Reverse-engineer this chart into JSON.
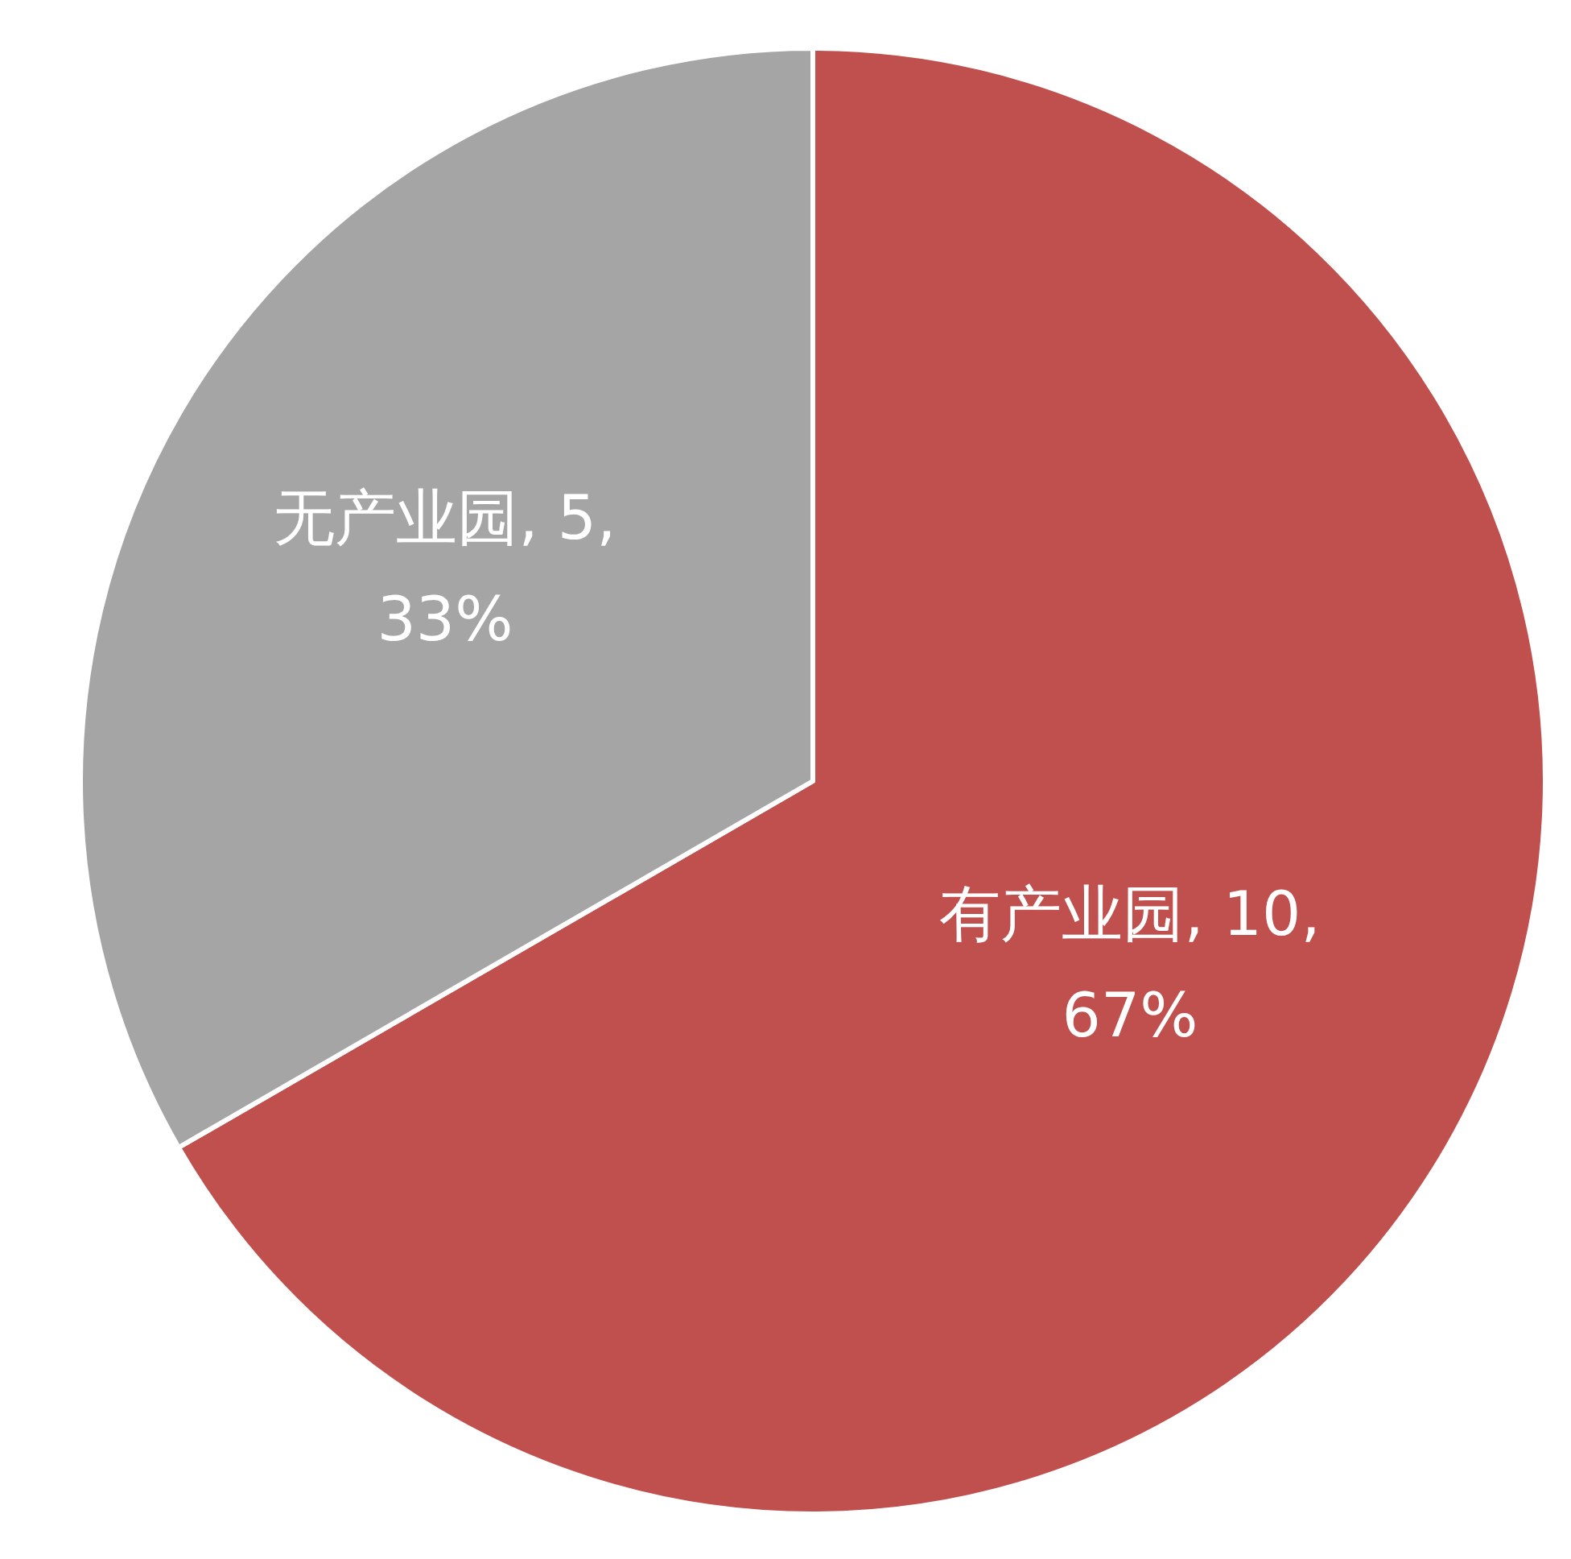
{
  "chart_data": {
    "type": "pie",
    "categories": [
      "有产业园",
      "无产业园"
    ],
    "values": [
      10,
      5
    ],
    "colors": [
      "#c0504d",
      "#a5a5a5"
    ],
    "value_labels": [
      "10, 67%",
      "5, 33%"
    ]
  }
}
